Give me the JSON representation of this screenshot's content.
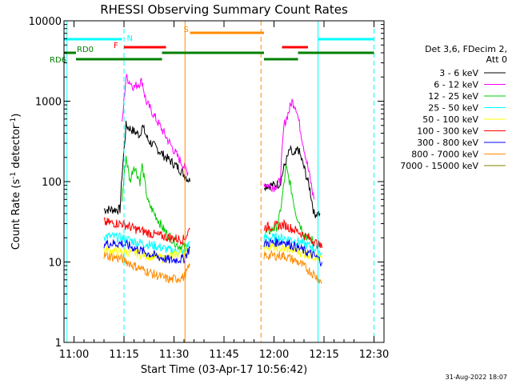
{
  "chart_data": {
    "type": "line",
    "title": "RHESSI Observing Summary Count Rates",
    "xlabel": "Start Time (03-Apr-17 10:56:42)",
    "ylabel_main": "Count Rate (s",
    "ylabel_sup1": "-1",
    "ylabel_mid": " detector",
    "ylabel_sup2": "-1",
    "ylabel_end": ")",
    "y_scale": "log",
    "ylim": [
      1,
      10000
    ],
    "xlim_minutes": [
      10.95,
      12.55
    ],
    "x_ticks": [
      {
        "t": 11.0,
        "label": "11:00"
      },
      {
        "t": 11.25,
        "label": "11:15"
      },
      {
        "t": 11.5,
        "label": "11:30"
      },
      {
        "t": 11.75,
        "label": "11:45"
      },
      {
        "t": 12.0,
        "label": "12:00"
      },
      {
        "t": 12.25,
        "label": "12:15"
      },
      {
        "t": 12.5,
        "label": "12:30"
      }
    ],
    "y_ticks": [
      {
        "v": 1,
        "label": "1"
      },
      {
        "v": 10,
        "label": "10"
      },
      {
        "v": 100,
        "label": "100"
      },
      {
        "v": 1000,
        "label": "1000"
      },
      {
        "v": 10000,
        "label": "10000"
      }
    ],
    "legend_header": [
      "Det 3,6, FDecim 2,",
      "Att 0"
    ],
    "legend_position": "right",
    "series": [
      {
        "name": "3 - 6 keV",
        "color": "#000000",
        "seg1": [
          [
            11.15,
            45
          ],
          [
            11.23,
            45
          ],
          [
            11.24,
            120
          ],
          [
            11.26,
            500
          ],
          [
            11.3,
            420
          ],
          [
            11.33,
            380
          ],
          [
            11.34,
            500
          ],
          [
            11.37,
            330
          ],
          [
            11.45,
            210
          ],
          [
            11.52,
            150
          ],
          [
            11.56,
            115
          ],
          [
            11.58,
            100
          ]
        ],
        "seg2": [
          [
            11.95,
            90
          ],
          [
            12.0,
            90
          ],
          [
            12.03,
            95
          ],
          [
            12.05,
            150
          ],
          [
            12.08,
            250
          ],
          [
            12.1,
            200
          ],
          [
            12.12,
            260
          ],
          [
            12.15,
            150
          ],
          [
            12.18,
            80
          ],
          [
            12.2,
            40
          ],
          [
            12.23,
            40
          ]
        ]
      },
      {
        "name": "6 - 12 keV",
        "color": "#ff00ff",
        "seg1": [
          [
            11.24,
            500
          ],
          [
            11.26,
            2000
          ],
          [
            11.3,
            1500
          ],
          [
            11.33,
            1700
          ],
          [
            11.34,
            1800
          ],
          [
            11.36,
            1000
          ],
          [
            11.45,
            400
          ],
          [
            11.52,
            200
          ],
          [
            11.57,
            130
          ]
        ],
        "seg2": [
          [
            11.95,
            95
          ],
          [
            12.0,
            85
          ],
          [
            12.03,
            100
          ],
          [
            12.05,
            500
          ],
          [
            12.07,
            700
          ],
          [
            12.09,
            1000
          ],
          [
            12.11,
            850
          ],
          [
            12.14,
            350
          ],
          [
            12.18,
            110
          ],
          [
            12.2,
            60
          ]
        ]
      },
      {
        "name": "12 - 25 keV",
        "color": "#00cc00",
        "seg1": [
          [
            11.24,
            60
          ],
          [
            11.26,
            210
          ],
          [
            11.28,
            100
          ],
          [
            11.3,
            160
          ],
          [
            11.33,
            100
          ],
          [
            11.34,
            160
          ],
          [
            11.37,
            55
          ],
          [
            11.45,
            25
          ],
          [
            11.52,
            16
          ],
          [
            11.57,
            15
          ]
        ],
        "seg2": [
          [
            11.95,
            22
          ],
          [
            12.02,
            28
          ],
          [
            12.04,
            60
          ],
          [
            12.06,
            150
          ],
          [
            12.08,
            95
          ],
          [
            12.11,
            40
          ],
          [
            12.15,
            22
          ],
          [
            12.2,
            18
          ]
        ]
      },
      {
        "name": "25 - 50 keV",
        "color": "#00ffff",
        "seg1": [
          [
            11.15,
            21
          ],
          [
            11.24,
            20
          ],
          [
            11.3,
            18
          ],
          [
            11.4,
            16
          ],
          [
            11.48,
            14
          ],
          [
            11.55,
            13
          ],
          [
            11.58,
            18
          ]
        ],
        "seg2": [
          [
            11.95,
            20
          ],
          [
            12.05,
            20
          ],
          [
            12.12,
            18
          ],
          [
            12.2,
            15
          ],
          [
            12.24,
            13
          ]
        ]
      },
      {
        "name": "50 - 100 keV",
        "color": "#ffff00",
        "seg1": [
          [
            11.15,
            14
          ],
          [
            11.3,
            13
          ],
          [
            11.45,
            11
          ],
          [
            11.58,
            14
          ]
        ],
        "seg2": [
          [
            11.95,
            16
          ],
          [
            12.1,
            14
          ],
          [
            12.24,
            11
          ]
        ]
      },
      {
        "name": "100 - 300 keV",
        "color": "#ff0000",
        "seg1": [
          [
            11.15,
            31
          ],
          [
            11.24,
            30
          ],
          [
            11.3,
            26
          ],
          [
            11.4,
            22
          ],
          [
            11.48,
            20
          ],
          [
            11.55,
            19
          ],
          [
            11.58,
            26
          ]
        ],
        "seg2": [
          [
            11.95,
            27
          ],
          [
            12.05,
            29
          ],
          [
            12.12,
            24
          ],
          [
            12.2,
            18
          ],
          [
            12.24,
            15
          ]
        ]
      },
      {
        "name": "300 - 800 keV",
        "color": "#0000ff",
        "seg1": [
          [
            11.15,
            17
          ],
          [
            11.24,
            17
          ],
          [
            11.3,
            15
          ],
          [
            11.4,
            12
          ],
          [
            11.48,
            10.5
          ],
          [
            11.55,
            11
          ],
          [
            11.58,
            15
          ]
        ],
        "seg2": [
          [
            11.95,
            17
          ],
          [
            12.05,
            18
          ],
          [
            12.12,
            15
          ],
          [
            12.2,
            12
          ],
          [
            12.24,
            10
          ]
        ]
      },
      {
        "name": "800 - 7000 keV",
        "color": "#ff8c00",
        "seg1": [
          [
            11.15,
            12
          ],
          [
            11.24,
            11
          ],
          [
            11.3,
            9
          ],
          [
            11.4,
            7
          ],
          [
            11.48,
            6
          ],
          [
            11.55,
            6.5
          ],
          [
            11.58,
            9
          ]
        ],
        "seg2": [
          [
            11.95,
            12
          ],
          [
            12.05,
            12
          ],
          [
            12.12,
            10
          ],
          [
            12.2,
            7
          ],
          [
            12.24,
            5.5
          ]
        ]
      },
      {
        "name": "7000 - 15000 keV",
        "color": "#808000",
        "seg1": [],
        "seg2": []
      }
    ],
    "flag_bars": [
      {
        "label": "N",
        "color": "#00ffff",
        "y": 49,
        "spans": [
          [
            10.95,
            11.24
          ],
          [
            12.22,
            12.5
          ]
        ]
      },
      {
        "label": "S",
        "color": "#ff8c00",
        "y": 41,
        "spans": [
          [
            11.58,
            11.95
          ]
        ]
      },
      {
        "label": "F",
        "color": "#ff0000",
        "y": 59,
        "spans": [
          [
            11.25,
            11.46
          ],
          [
            12.04,
            12.17
          ]
        ]
      },
      {
        "label": "RD0",
        "color": "#008000",
        "y": 66,
        "spans": [
          [
            10.95,
            11.01
          ],
          [
            11.44,
            11.95
          ],
          [
            12.12,
            12.5
          ]
        ]
      },
      {
        "label": "RD6",
        "color": "#008000",
        "y": 74,
        "spans": [
          [
            11.01,
            11.44
          ],
          [
            11.95,
            12.12
          ]
        ]
      }
    ],
    "vlines": [
      {
        "t": 10.965,
        "color": "#00ffff",
        "dashed": false
      },
      {
        "t": 11.25,
        "color": "#00ffff",
        "dashed": true
      },
      {
        "t": 11.555,
        "color": "#ff8c00",
        "dashed": false
      },
      {
        "t": 11.935,
        "color": "#ff8c00",
        "dashed": true
      },
      {
        "t": 12.22,
        "color": "#00ffff",
        "dashed": false
      },
      {
        "t": 12.5,
        "color": "#00ffff",
        "dashed": true
      }
    ]
  },
  "footer_date": "31-Aug-2022 18:07"
}
